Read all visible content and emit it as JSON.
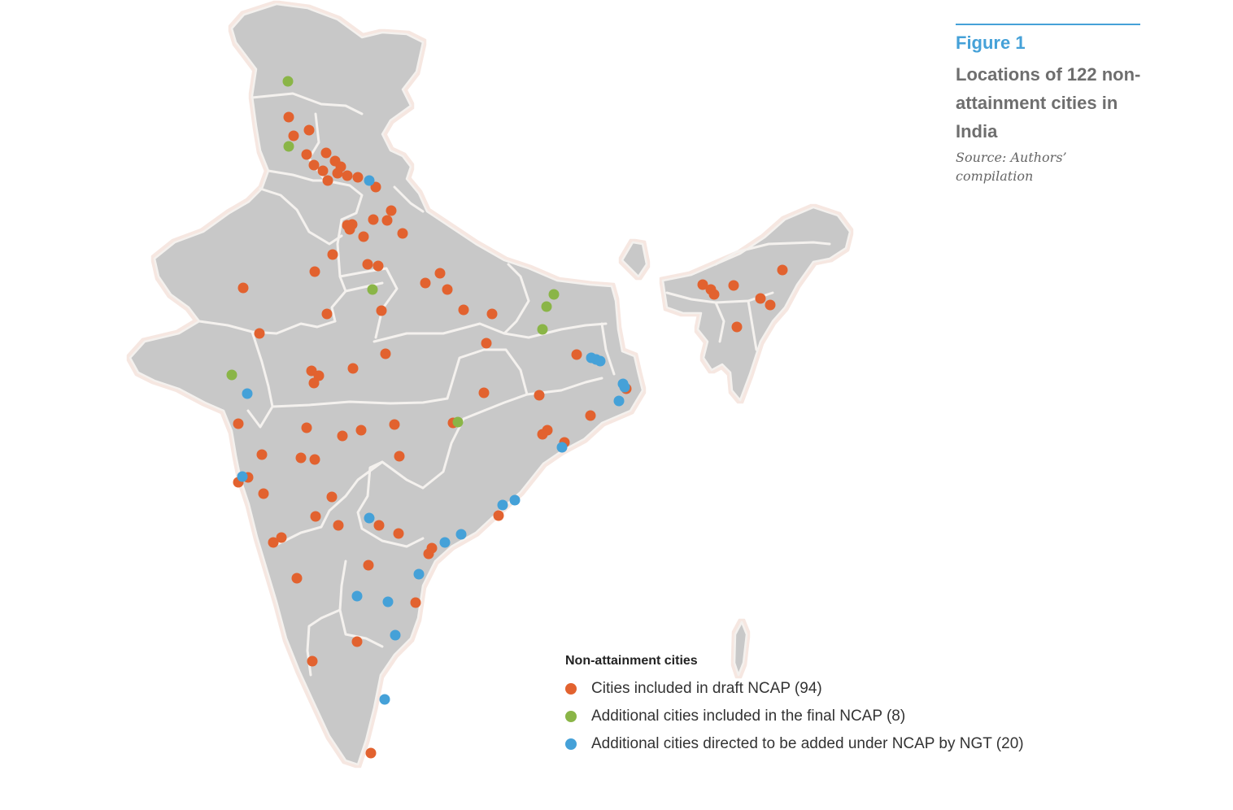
{
  "figure": {
    "label": "Figure 1",
    "title": "Locations of 122 non-attainment cities in India",
    "source": "Source: Authors’ compilation"
  },
  "legend": {
    "title": "Non-attainment cities",
    "items": [
      {
        "label": "Cities included in draft NCAP (94)",
        "color": "#e2622f"
      },
      {
        "label": "Additional cities included in the final NCAP (8)",
        "color": "#8ab547"
      },
      {
        "label": "Additional cities directed to be added under NCAP by NGT (20)",
        "color": "#45a1d8"
      }
    ]
  },
  "map": {
    "land_color": "#c8c8c8",
    "border_color": "#f4f1ee"
  }
}
